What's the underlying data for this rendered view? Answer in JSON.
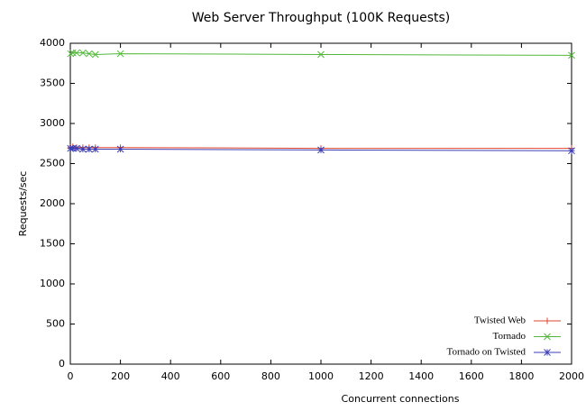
{
  "chart_data": {
    "type": "line",
    "title": "Web Server Throughput (100K Requests)",
    "x_label": "Concurrent connections",
    "y_label": "Requests/sec",
    "x": [
      1,
      10,
      25,
      50,
      75,
      100,
      200,
      1000,
      2000
    ],
    "series": [
      {
        "name": "Twisted Web",
        "color": "#e0442c",
        "marker": "plus",
        "values": [
          2700,
          2710,
          2700,
          2700,
          2700,
          2700,
          2700,
          2690,
          2690
        ]
      },
      {
        "name": "Tornado",
        "color": "#52b83a",
        "marker": "cross",
        "values": [
          3870,
          3880,
          3880,
          3880,
          3870,
          3860,
          3870,
          3860,
          3850
        ]
      },
      {
        "name": "Tornado on Twisted",
        "color": "#3d3fb5",
        "marker": "star",
        "values": [
          2690,
          2690,
          2690,
          2680,
          2680,
          2680,
          2680,
          2670,
          2660
        ]
      }
    ],
    "xlim": [
      0,
      2000
    ],
    "xticks": [
      0,
      200,
      400,
      600,
      800,
      1000,
      1200,
      1400,
      1600,
      1800,
      2000
    ],
    "ylim": [
      0,
      4000
    ],
    "yticks": [
      0,
      500,
      1000,
      1500,
      2000,
      2500,
      3000,
      3500,
      4000
    ],
    "grid": false,
    "legend": "lower right"
  }
}
